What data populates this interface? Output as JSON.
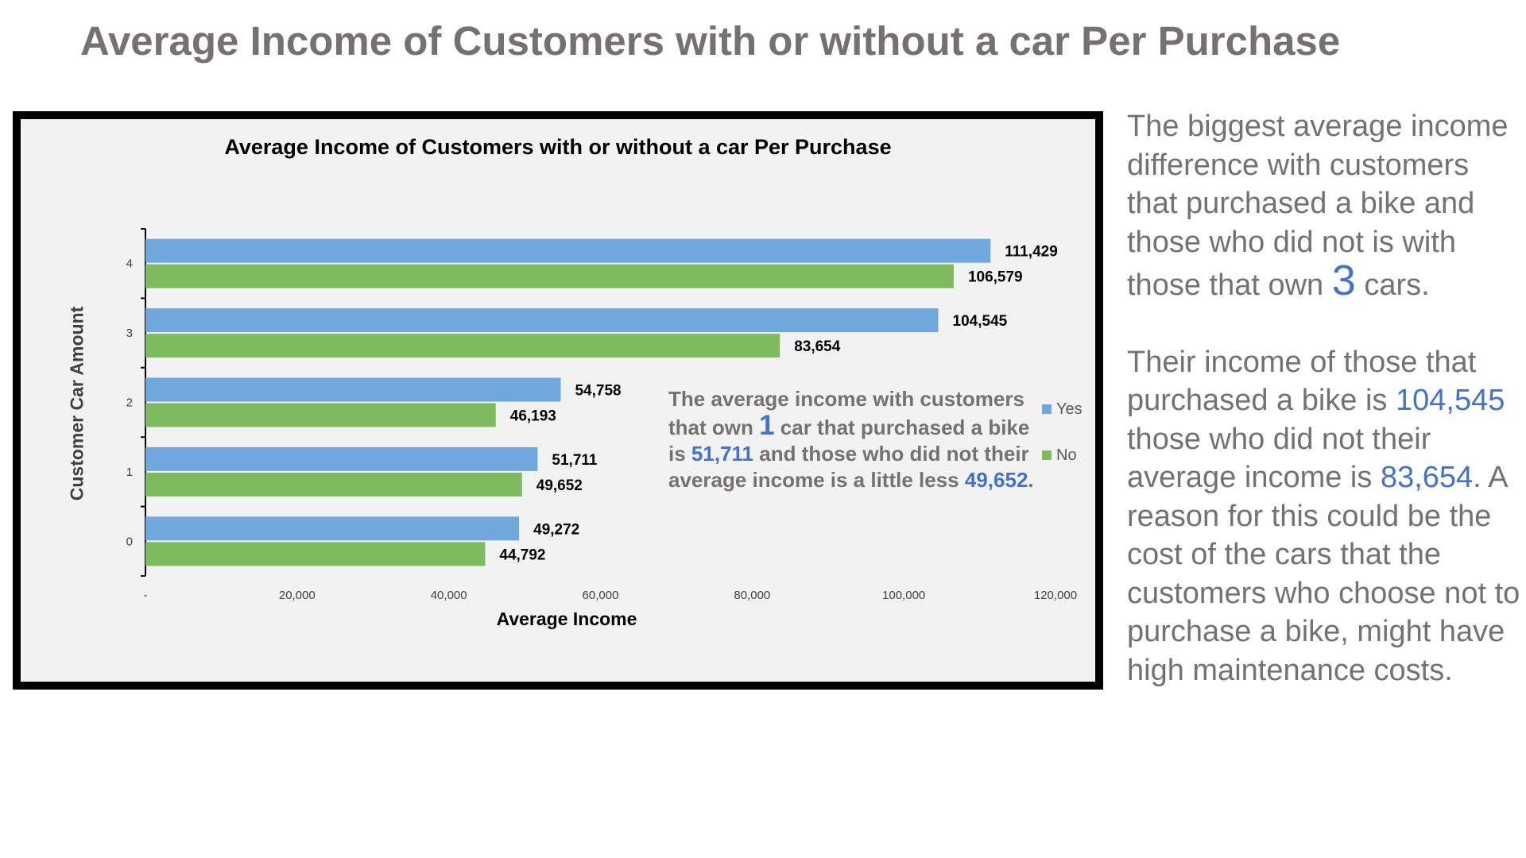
{
  "page": {
    "title": "Average Income of Customers with or without a car Per Purchase"
  },
  "chart_data": {
    "type": "bar",
    "orientation": "horizontal",
    "title": "Average Income of Customers with or without a car Per Purchase",
    "xlabel": "Average Income",
    "ylabel": "Customer Car Amount",
    "categories": [
      "0",
      "1",
      "2",
      "3",
      "4"
    ],
    "series": [
      {
        "name": "Yes",
        "color": "#6fa8dc",
        "values": [
          49272,
          51711,
          54758,
          104545,
          111429
        ]
      },
      {
        "name": "No",
        "color": "#7fba5f",
        "values": [
          44792,
          49652,
          46193,
          83654,
          106579
        ]
      }
    ],
    "value_labels": {
      "Yes": [
        "49,272",
        "51,711",
        "54,758",
        "104,545",
        "111,429"
      ],
      "No": [
        "44,792",
        "49,652",
        "46,193",
        "83,654",
        "106,579"
      ]
    },
    "xlim": [
      0,
      120000
    ],
    "xticks": [
      0,
      20000,
      40000,
      60000,
      80000,
      100000,
      120000
    ],
    "xtick_labels": [
      "-",
      "20,000",
      "40,000",
      "60,000",
      "80,000",
      "100,000",
      "120,000"
    ],
    "grid": false,
    "legend_position": "right"
  },
  "annotation": {
    "p1": "The average income with customers that own ",
    "num": "1",
    "p2": " car that purchased a bike is ",
    "val1": "51,711",
    "p3": " and those who did not their average income is a little less ",
    "val2": "49,652",
    "p4": "."
  },
  "side_text": {
    "para1_a": "The biggest average income difference with customers that purchased a bike and those who did not is with those that own ",
    "para1_num": "3",
    "para1_b": " cars.",
    "para2_a": "Their income of those that purchased a bike is ",
    "para2_val1": "104,545",
    "para2_b": " those who did not their average income is ",
    "para2_val2": "83,654",
    "para2_c": ".  A reason for this could be the cost of the cars that the customers who choose not to purchase a bike, might have high maintenance costs."
  }
}
